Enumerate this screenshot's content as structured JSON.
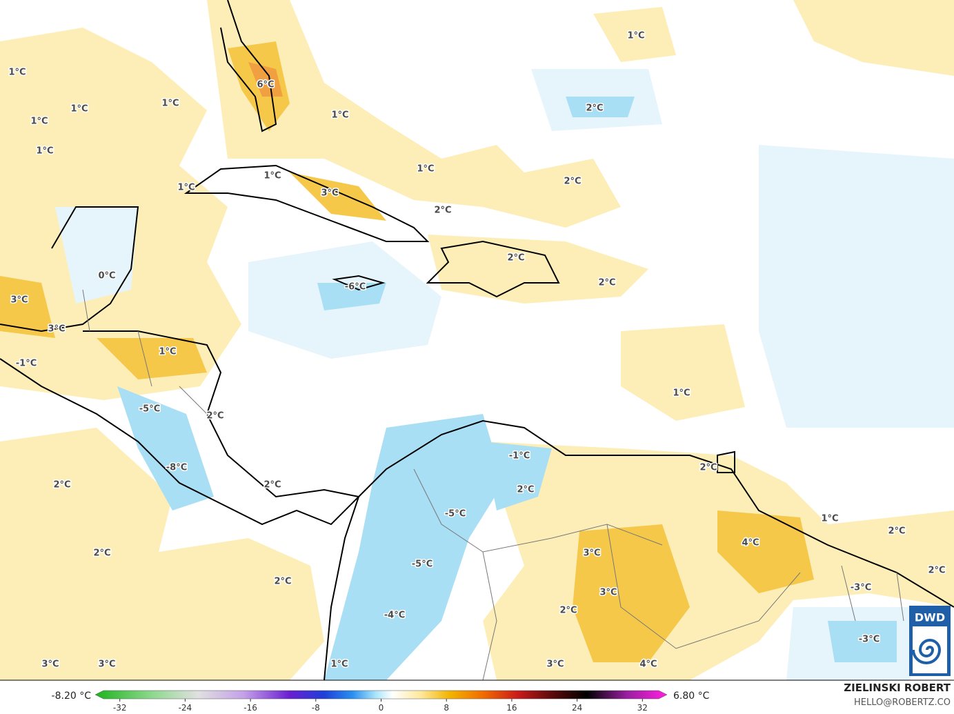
{
  "map": {
    "labels": [
      "1°C",
      "1°C",
      "1°C",
      "1°C",
      "1°C",
      "6°C",
      "1°C",
      "1°C",
      "2°C",
      "1°C",
      "1°C",
      "3°C",
      "1°C",
      "2°C",
      "2°C",
      "0°C",
      "3°C",
      "3°C",
      "-6°C",
      "2°C",
      "2°C",
      "1°C",
      "-1°C",
      "-5°C",
      "2°C",
      "1°C",
      "-8°C",
      "-1°C",
      "2°C",
      "2°C",
      "2°C",
      "2°C",
      "-5°C",
      "1°C",
      "2°C",
      "4°C",
      "2°C",
      "3°C",
      "-5°C",
      "2°C",
      "2°C",
      "3°C",
      "-3°C",
      "2°C",
      "-4°C",
      "-3°C",
      "1°C",
      "3°C",
      "3°C",
      "3°C",
      "4°C"
    ]
  },
  "colorbar": {
    "min_label": "-8.20 °C",
    "max_label": "6.80 °C",
    "ticks": [
      -32,
      -24,
      -16,
      -8,
      0,
      8,
      16,
      24,
      32
    ],
    "range": [
      -34,
      34
    ]
  },
  "credit": {
    "author": "ZIELINSKI ROBERT",
    "contact": "HELLO@ROBERTZ.CO",
    "logo": "DWD"
  }
}
